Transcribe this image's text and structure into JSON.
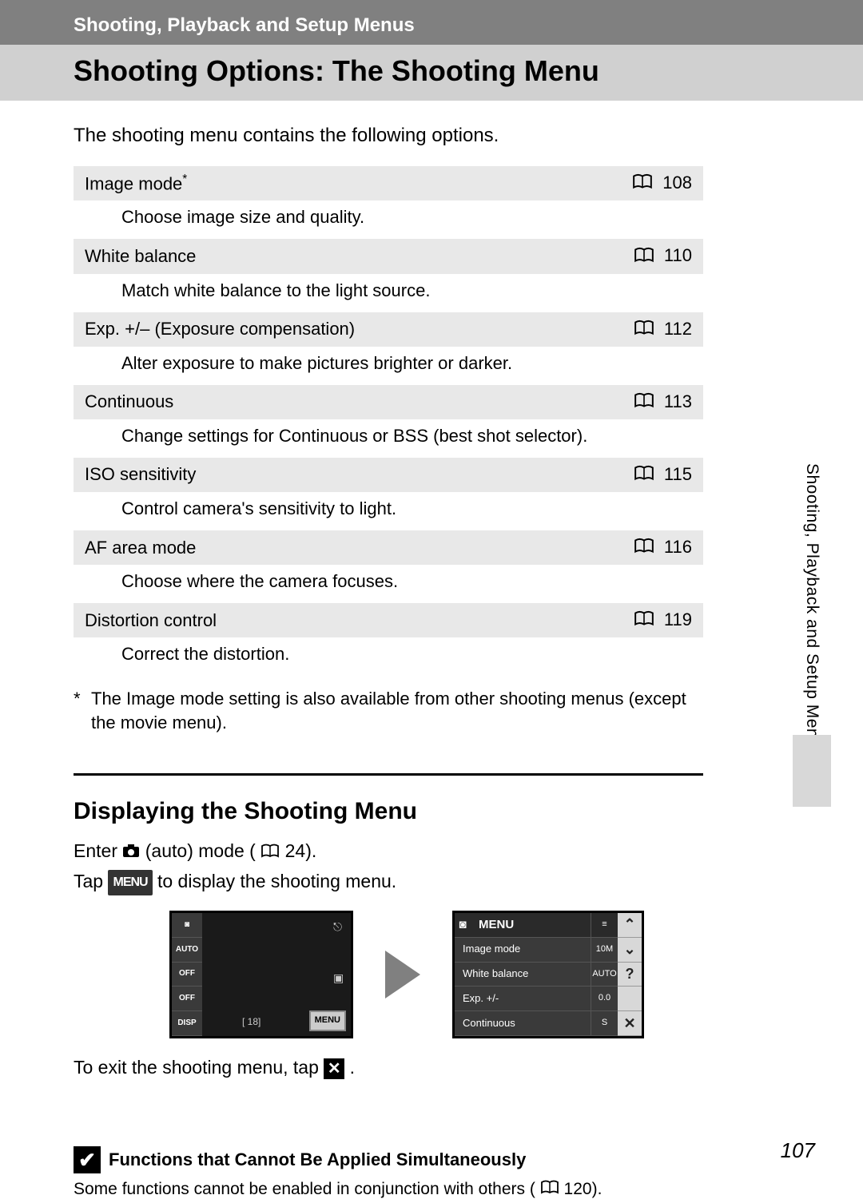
{
  "breadcrumb": "Shooting, Playback and Setup Menus",
  "pageTitle": "Shooting Options: The Shooting Menu",
  "intro": "The shooting menu contains the following options.",
  "side_tab": "Shooting, Playback and Setup Menus",
  "page_number": "107",
  "items": [
    {
      "name": "Image mode",
      "footmark": "*",
      "page": "108",
      "desc": "Choose image size and quality."
    },
    {
      "name": "White balance",
      "footmark": "",
      "page": "110",
      "desc": "Match white balance to the light source."
    },
    {
      "name": "Exp. +/– (Exposure compensation)",
      "footmark": "",
      "page": "112",
      "desc": "Alter exposure to make pictures brighter or darker."
    },
    {
      "name": "Continuous",
      "footmark": "",
      "page": "113",
      "desc": "Change settings for Continuous or BSS (best shot selector)."
    },
    {
      "name": "ISO sensitivity",
      "footmark": "",
      "page": "115",
      "desc": "Control camera's sensitivity to light."
    },
    {
      "name": "AF area mode",
      "footmark": "",
      "page": "116",
      "desc": "Choose where the camera focuses."
    },
    {
      "name": "Distortion control",
      "footmark": "",
      "page": "119",
      "desc": "Correct the distortion."
    }
  ],
  "footnote": {
    "mark": "*",
    "text": "The Image mode setting is also available from other shooting menus (except the movie menu)."
  },
  "section2": {
    "heading": "Displaying the Shooting Menu",
    "line1_a": "Enter ",
    "line1_b": " (auto) mode (",
    "line1_c": " 24).",
    "line2_a": "Tap ",
    "line2_b": " to display the shooting menu.",
    "exit_a": "To exit the shooting menu, tap ",
    "exit_b": ".",
    "menu_badge": "MENU"
  },
  "screen1_sidebar": [
    "◙",
    "AUTO",
    "OFF",
    "OFF",
    "DISP"
  ],
  "screen1_bottom": "[   18]",
  "screen1_menu": "MENU",
  "screen2_header": "MENU",
  "screen2_rows": [
    {
      "label": "Image mode",
      "val": "10M"
    },
    {
      "label": "White balance",
      "val": "AUTO"
    },
    {
      "label": "Exp. +/-",
      "val": "0.0"
    },
    {
      "label": "Continuous",
      "val": "S"
    }
  ],
  "screen2_right": [
    "⌃",
    "⌄",
    "?",
    "",
    "✕"
  ],
  "note": {
    "title": "Functions that Cannot Be Applied Simultaneously",
    "body_a": "Some functions cannot be enabled in conjunction with others (",
    "body_b": " 120)."
  }
}
